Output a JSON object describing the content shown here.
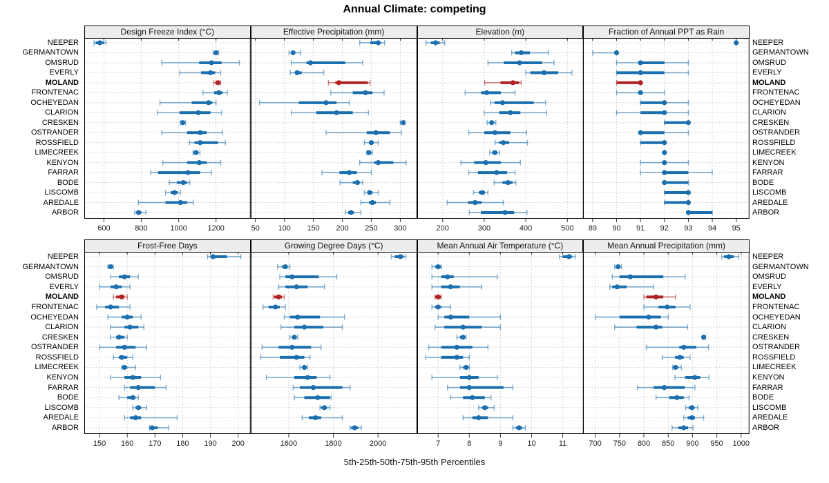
{
  "title": "Annual Climate: competing",
  "caption": "5th-25th-50th-75th-95th Percentiles",
  "rows": [
    "NEEPER",
    "GERMANTOWN",
    "OMSRUD",
    "EVERLY",
    "MOLAND",
    "FRONTENAC",
    "OCHEYEDAN",
    "CLARION",
    "CRESKEN",
    "OSTRANDER",
    "ROSSFIELD",
    "LIMECREEK",
    "KENYON",
    "FARRAR",
    "BODE",
    "LISCOMB",
    "AREDALE",
    "ARBOR"
  ],
  "highlight_row": "MOLAND",
  "colors": {
    "series_blue": "#1c6fae",
    "highlight_red": "#b22222",
    "grid": "#cbcbcb",
    "header_bg": "#ededed",
    "border": "#000000"
  },
  "percentile_labels": [
    "5th",
    "25th",
    "50th",
    "75th",
    "95th"
  ],
  "chart_data": [
    {
      "type": "interval-dotplot",
      "title": "Design Freeze Index (°C)",
      "ticks": [
        600,
        800,
        1000,
        1200
      ],
      "domain": [
        495,
        1385
      ],
      "series": {
        "NEEPER": [
          547,
          556,
          578,
          600,
          611
        ],
        "GERMANTOWN": [
          1185,
          1193,
          1200,
          1208,
          1214
        ],
        "OMSRUD": [
          910,
          1110,
          1175,
          1230,
          1325
        ],
        "EVERLY": [
          1005,
          1120,
          1170,
          1195,
          1225
        ],
        "MOLAND": [
          1188,
          1196,
          1210,
          1220,
          1225
        ],
        "FRONTENAC": [
          1130,
          1190,
          1215,
          1235,
          1260
        ],
        "OCHEYEDAN": [
          900,
          1070,
          1160,
          1180,
          1200
        ],
        "CLARION": [
          885,
          1005,
          1105,
          1170,
          1230
        ],
        "CRESKEN": [
          1010,
          1015,
          1022,
          1030,
          1037
        ],
        "OSTRANDER": [
          910,
          1045,
          1115,
          1150,
          1235
        ],
        "ROSSFIELD": [
          1058,
          1085,
          1115,
          1210,
          1250
        ],
        "LIMECREEK": [
          1077,
          1083,
          1092,
          1106,
          1114
        ],
        "KENYON": [
          915,
          1045,
          1110,
          1150,
          1225
        ],
        "FARRAR": [
          850,
          890,
          1050,
          1115,
          1175
        ],
        "BODE": [
          950,
          990,
          1025,
          1045,
          1060
        ],
        "LISCOMB": [
          930,
          957,
          978,
          995,
          1010
        ],
        "AREDALE": [
          785,
          930,
          1010,
          1045,
          1078
        ],
        "ARBOR": [
          765,
          775,
          785,
          800,
          825
        ]
      }
    },
    {
      "type": "interval-dotplot",
      "title": "Effective Precipitation (mm)",
      "ticks": [
        50,
        100,
        150,
        200,
        250,
        300
      ],
      "domain": [
        42,
        329
      ],
      "series": {
        "NEEPER": [
          230,
          248,
          262,
          266,
          273
        ],
        "GERMANTOWN": [
          108,
          112,
          115,
          118,
          128
        ],
        "OMSRUD": [
          112,
          138,
          145,
          205,
          235
        ],
        "EVERLY": [
          110,
          118,
          122,
          130,
          168
        ],
        "MOLAND": [
          176,
          188,
          194,
          244,
          248
        ],
        "FRONTENAC": [
          180,
          218,
          240,
          252,
          272
        ],
        "OCHEYEDAN": [
          57,
          125,
          172,
          190,
          212
        ],
        "CLARION": [
          112,
          155,
          190,
          218,
          245
        ],
        "CRESKEN": [
          300,
          303,
          305,
          306,
          308
        ],
        "OSTRANDER": [
          172,
          242,
          258,
          282,
          302
        ],
        "ROSSFIELD": [
          238,
          246,
          250,
          254,
          262
        ],
        "LIMECREEK": [
          242,
          244,
          246,
          248,
          252
        ],
        "KENYON": [
          230,
          255,
          262,
          288,
          310
        ],
        "FARRAR": [
          165,
          195,
          212,
          225,
          250
        ],
        "BODE": [
          196,
          218,
          226,
          230,
          235
        ],
        "LISCOMB": [
          238,
          243,
          247,
          252,
          262
        ],
        "AREDALE": [
          232,
          246,
          252,
          258,
          282
        ],
        "ARBOR": [
          205,
          210,
          215,
          220,
          232
        ]
      }
    },
    {
      "type": "interval-dotplot",
      "title": "Elevation (m)",
      "ticks": [
        200,
        300,
        400,
        500
      ],
      "domain": [
        139,
        539
      ],
      "series": {
        "NEEPER": [
          160,
          172,
          183,
          193,
          205
        ],
        "GERMANTOWN": [
          366,
          374,
          389,
          410,
          455
        ],
        "OMSRUD": [
          309,
          347,
          385,
          439,
          468
        ],
        "EVERLY": [
          400,
          411,
          444,
          478,
          511
        ],
        "MOLAND": [
          301,
          339,
          369,
          384,
          389
        ],
        "FRONTENAC": [
          254,
          292,
          306,
          340,
          374
        ],
        "OCHEYEDAN": [
          315,
          325,
          344,
          419,
          448
        ],
        "CLARION": [
          300,
          336,
          363,
          387,
          450
        ],
        "CRESKEN": [
          307,
          313,
          318,
          324,
          328
        ],
        "OSTRANDER": [
          263,
          300,
          326,
          363,
          402
        ],
        "ROSSFIELD": [
          326,
          336,
          346,
          360,
          404
        ],
        "LIMECREEK": [
          313,
          319,
          326,
          331,
          337
        ],
        "KENYON": [
          244,
          276,
          304,
          340,
          387
        ],
        "FARRAR": [
          263,
          285,
          330,
          355,
          374
        ],
        "BODE": [
          324,
          344,
          357,
          368,
          376
        ],
        "LISCOMB": [
          274,
          287,
          295,
          302,
          309
        ],
        "AREDALE": [
          211,
          261,
          278,
          294,
          346
        ],
        "ARBOR": [
          264,
          292,
          350,
          372,
          403
        ]
      }
    },
    {
      "type": "interval-dotplot",
      "title": "Fraction of Annual PPT as Rain",
      "ticks": [
        89,
        90,
        91,
        92,
        93,
        94,
        95
      ],
      "domain": [
        88.6,
        95.55
      ],
      "series": {
        "NEEPER": [
          95,
          95,
          95,
          95,
          95
        ],
        "GERMANTOWN": [
          89,
          90,
          90,
          90,
          90
        ],
        "OMSRUD": [
          90,
          91,
          91,
          92,
          93
        ],
        "EVERLY": [
          90,
          90,
          91,
          92,
          93
        ],
        "MOLAND": [
          90,
          90,
          91,
          91,
          91
        ],
        "FRONTENAC": [
          90,
          91,
          91,
          91,
          92
        ],
        "OCHEYEDAN": [
          91,
          91,
          92,
          92,
          93
        ],
        "CLARION": [
          90,
          91,
          92,
          92,
          93
        ],
        "CRESKEN": [
          92,
          92,
          93,
          93,
          93
        ],
        "OSTRANDER": [
          91,
          91,
          91,
          92,
          93
        ],
        "ROSSFIELD": [
          91,
          91,
          92,
          92,
          92
        ],
        "LIMECREEK": [
          92,
          92,
          92,
          92,
          92
        ],
        "KENYON": [
          91,
          92,
          92,
          92,
          93
        ],
        "FARRAR": [
          91,
          92,
          92,
          93,
          94
        ],
        "BODE": [
          92,
          92,
          92,
          93,
          93
        ],
        "LISCOMB": [
          92,
          92,
          93,
          93,
          93
        ],
        "AREDALE": [
          92,
          92,
          93,
          93,
          93
        ],
        "ARBOR": [
          93,
          93,
          93,
          94,
          94
        ]
      }
    },
    {
      "type": "interval-dotplot",
      "title": "Frost-Free Days",
      "ticks": [
        150,
        160,
        170,
        180,
        190,
        200
      ],
      "domain": [
        144.5,
        204.5
      ],
      "series": {
        "NEEPER": [
          189,
          190,
          191,
          196,
          201
        ],
        "GERMANTOWN": [
          153,
          154,
          154,
          154,
          155
        ],
        "OMSRUD": [
          154,
          157,
          159,
          161,
          164
        ],
        "EVERLY": [
          150,
          154,
          156,
          158,
          161
        ],
        "MOLAND": [
          155,
          156,
          158,
          159,
          160
        ],
        "FRONTENAC": [
          149,
          152,
          154,
          157,
          161
        ],
        "OCHEYEDAN": [
          153,
          158,
          160,
          162,
          165
        ],
        "CLARION": [
          154,
          159,
          161,
          164,
          166
        ],
        "CRESKEN": [
          154,
          156,
          157,
          159,
          160
        ],
        "OSTRANDER": [
          150,
          156,
          159,
          163,
          167
        ],
        "ROSSFIELD": [
          155,
          157,
          158,
          160,
          162
        ],
        "LIMECREEK": [
          158,
          158,
          159,
          160,
          163
        ],
        "KENYON": [
          154,
          159,
          162,
          165,
          172
        ],
        "FARRAR": [
          159,
          161,
          164,
          170,
          174
        ],
        "BODE": [
          157,
          160,
          162,
          163,
          164
        ],
        "LISCOMB": [
          162,
          163,
          164,
          165,
          167
        ],
        "AREDALE": [
          159,
          161,
          163,
          165,
          178
        ],
        "ARBOR": [
          168,
          168,
          169,
          171,
          175
        ]
      }
    },
    {
      "type": "interval-dotplot",
      "title": "Growing Degree Days (°C)",
      "ticks": [
        1600,
        1800,
        2000
      ],
      "domain": [
        1430,
        2175
      ],
      "series": {
        "NEEPER": [
          2060,
          2075,
          2100,
          2115,
          2125
        ],
        "GERMANTOWN": [
          1550,
          1570,
          1585,
          1595,
          1605
        ],
        "OMSRUD": [
          1560,
          1585,
          1615,
          1735,
          1815
        ],
        "EVERLY": [
          1555,
          1585,
          1635,
          1685,
          1760
        ],
        "MOLAND": [
          1530,
          1535,
          1555,
          1570,
          1580
        ],
        "FRONTENAC": [
          1485,
          1510,
          1540,
          1560,
          1585
        ],
        "OCHEYEDAN": [
          1580,
          1605,
          1640,
          1740,
          1850
        ],
        "CLARION": [
          1565,
          1625,
          1670,
          1755,
          1840
        ],
        "CRESKEN": [
          1605,
          1615,
          1625,
          1635,
          1640
        ],
        "OSTRANDER": [
          1480,
          1555,
          1615,
          1700,
          1745
        ],
        "ROSSFIELD": [
          1475,
          1560,
          1635,
          1670,
          1695
        ],
        "LIMECREEK": [
          1650,
          1660,
          1670,
          1680,
          1685
        ],
        "KENYON": [
          1500,
          1625,
          1685,
          1725,
          1785
        ],
        "FARRAR": [
          1620,
          1650,
          1710,
          1840,
          1875
        ],
        "BODE": [
          1625,
          1670,
          1730,
          1785,
          1790
        ],
        "LISCOMB": [
          1740,
          1745,
          1760,
          1770,
          1785
        ],
        "AREDALE": [
          1660,
          1690,
          1720,
          1745,
          1840
        ],
        "ARBOR": [
          1875,
          1880,
          1895,
          1910,
          1925
        ]
      }
    },
    {
      "type": "interval-dotplot",
      "title": "Mean Annual Air Temperature (°C)",
      "ticks": [
        7,
        8,
        9,
        10,
        11
      ],
      "domain": [
        6.33,
        11.67
      ],
      "series": {
        "NEEPER": [
          10.9,
          11.0,
          11.2,
          11.3,
          11.4
        ],
        "GERMANTOWN": [
          6.8,
          6.9,
          7.0,
          7.1,
          7.1
        ],
        "OMSRUD": [
          6.8,
          7.1,
          7.3,
          7.5,
          8.9
        ],
        "EVERLY": [
          6.8,
          7.1,
          7.4,
          7.7,
          8.4
        ],
        "MOLAND": [
          6.9,
          6.9,
          7.0,
          7.1,
          7.1
        ],
        "FRONTENAC": [
          6.8,
          6.9,
          7.0,
          7.1,
          7.4
        ],
        "OCHEYEDAN": [
          7.0,
          7.2,
          7.4,
          8.0,
          9.0
        ],
        "CLARION": [
          6.9,
          7.2,
          7.8,
          8.4,
          9.0
        ],
        "CRESKEN": [
          7.6,
          7.7,
          7.8,
          7.8,
          7.9
        ],
        "OSTRANDER": [
          6.7,
          7.1,
          7.6,
          8.1,
          8.6
        ],
        "ROSSFIELD": [
          6.6,
          7.1,
          7.6,
          7.8,
          8.0
        ],
        "LIMECREEK": [
          7.7,
          7.8,
          7.9,
          7.9,
          8.0
        ],
        "KENYON": [
          6.8,
          7.7,
          8.0,
          8.3,
          8.9
        ],
        "FARRAR": [
          7.3,
          7.7,
          8.0,
          9.1,
          9.4
        ],
        "BODE": [
          7.4,
          7.8,
          8.1,
          8.5,
          8.7
        ],
        "LISCOMB": [
          8.3,
          8.4,
          8.5,
          8.6,
          8.8
        ],
        "AREDALE": [
          7.8,
          8.1,
          8.3,
          8.6,
          9.4
        ],
        "ARBOR": [
          9.4,
          9.5,
          9.6,
          9.7,
          9.8
        ]
      }
    },
    {
      "type": "interval-dotplot",
      "title": "Mean Annual Precipitation (mm)",
      "ticks": [
        700,
        750,
        800,
        850,
        900,
        950,
        1000
      ],
      "domain": [
        675,
        1017
      ],
      "series": {
        "NEEPER": [
          960,
          965,
          975,
          985,
          995
        ],
        "GERMANTOWN": [
          740,
          744,
          747,
          750,
          754
        ],
        "OMSRUD": [
          735,
          750,
          772,
          840,
          885
        ],
        "EVERLY": [
          730,
          735,
          745,
          765,
          820
        ],
        "MOLAND": [
          800,
          805,
          825,
          840,
          865
        ],
        "FRONTENAC": [
          800,
          830,
          848,
          865,
          895
        ],
        "OCHEYEDAN": [
          700,
          750,
          810,
          835,
          850
        ],
        "CLARION": [
          740,
          785,
          825,
          838,
          890
        ],
        "CRESKEN": [
          920,
          922,
          923,
          925,
          927
        ],
        "OSTRANDER": [
          805,
          873,
          882,
          908,
          933
        ],
        "ROSSFIELD": [
          838,
          864,
          874,
          882,
          895
        ],
        "LIMECREEK": [
          859,
          861,
          865,
          871,
          877
        ],
        "KENYON": [
          864,
          885,
          905,
          916,
          934
        ],
        "FARRAR": [
          787,
          820,
          842,
          884,
          905
        ],
        "BODE": [
          825,
          852,
          868,
          882,
          893
        ],
        "LISCOMB": [
          886,
          892,
          899,
          904,
          911
        ],
        "AREDALE": [
          882,
          890,
          899,
          905,
          923
        ],
        "ARBOR": [
          858,
          871,
          882,
          891,
          901
        ]
      }
    }
  ]
}
